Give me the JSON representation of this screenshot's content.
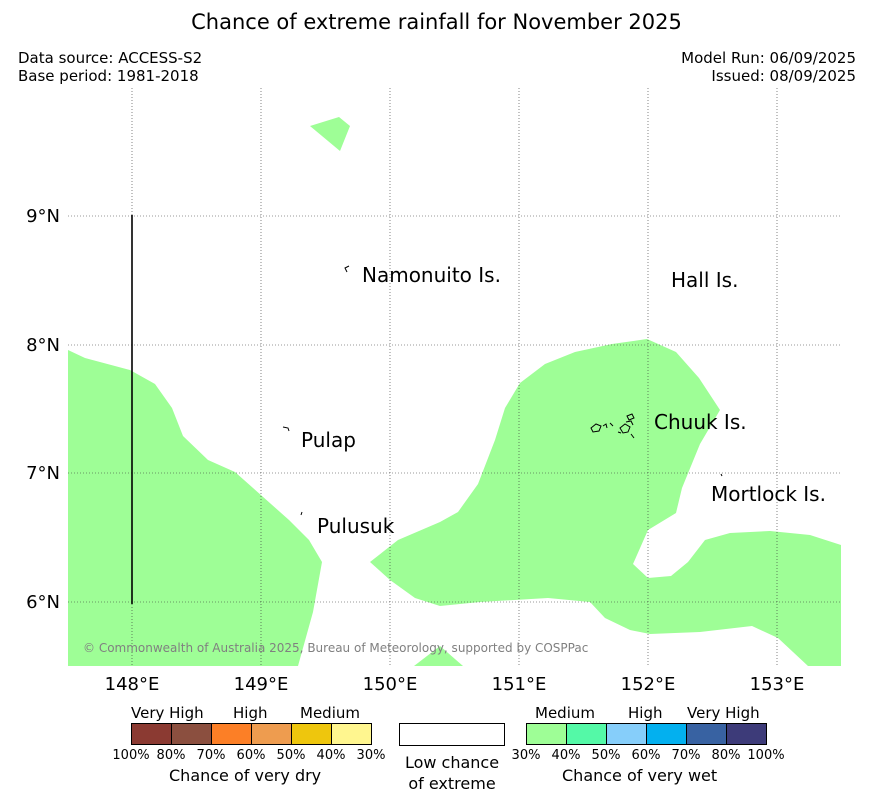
{
  "title": "Chance of extreme rainfall for November 2025",
  "meta": {
    "data_source": "Data source: ACCESS-S2",
    "base_period": "Base period: 1981-2018",
    "model_run": "Model Run: 06/09/2025",
    "issued": "Issued: 08/09/2025"
  },
  "map": {
    "lon_labels": [
      "148°E",
      "149°E",
      "150°E",
      "151°E",
      "152°E",
      "153°E"
    ],
    "lat_labels": [
      "9°N",
      "8°N",
      "7°N",
      "6°N"
    ],
    "places": [
      "Namonuito Is.",
      "Hall Is.",
      "Chuuk Is.",
      "Pulap",
      "Mortlock Is.",
      "Pulusuk"
    ],
    "copyright": "© Commonwealth of Australia 2025, Bureau of Meteorology, supported by COSPPac",
    "shaded_category": "Medium chance of very wet (30%-40%)",
    "shade_color": "#9efe96"
  },
  "legend": {
    "dry": {
      "headings": [
        "Very High",
        "High",
        "Medium"
      ],
      "ticks": [
        "100%",
        "80%",
        "70%",
        "60%",
        "50%",
        "40%",
        "30%"
      ],
      "colors": [
        "#8b3a32",
        "#8b4f3f",
        "#fc7f26",
        "#ee9c4f",
        "#eec60d",
        "#fff68f"
      ],
      "caption": "Chance of very dry"
    },
    "low": {
      "line1": "Low chance",
      "line2": "of extreme"
    },
    "wet": {
      "headings": [
        "Medium",
        "High",
        "Very High"
      ],
      "ticks": [
        "30%",
        "40%",
        "50%",
        "60%",
        "70%",
        "80%",
        "100%"
      ],
      "colors": [
        "#9efe96",
        "#54f9a7",
        "#86cefa",
        "#03b0ef",
        "#3862a2",
        "#3d3b79"
      ],
      "caption": "Chance of very wet"
    }
  }
}
